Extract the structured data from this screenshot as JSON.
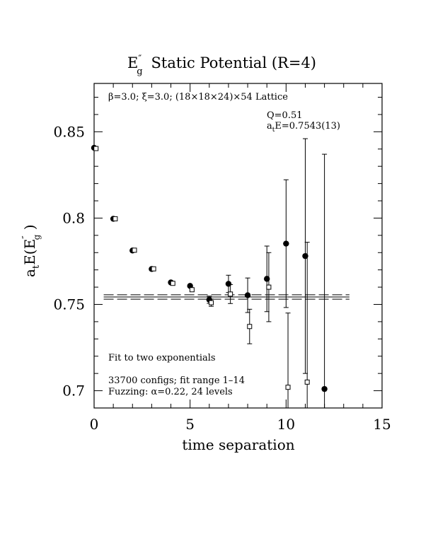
{
  "chart_data": {
    "type": "scatter",
    "title_main": "E",
    "title_sup": "″",
    "title_sub": "g",
    "title_rest": "Static Potential (R=4)",
    "ylabel_a": "a",
    "ylabel_t": "t",
    "ylabel_e": "E(E",
    "ylabel_sup": "″",
    "ylabel_sub": "g",
    "ylabel_end": " )",
    "xlabel": "time separation",
    "xlim": [
      0,
      15
    ],
    "ylim": [
      0.69,
      0.878
    ],
    "x_ticks": [
      0,
      5,
      10,
      15
    ],
    "x_tick_labels": [
      "0",
      "5",
      "10",
      "15"
    ],
    "y_ticks": [
      0.7,
      0.75,
      0.8,
      0.85
    ],
    "y_tick_labels": [
      "0.7",
      "0.75",
      "0.8",
      "0.85"
    ],
    "lattice_label": "β=3.0; ξ=3.0; (18×18×24)×54 Lattice",
    "q_label": "Q=0.51",
    "fit_a": "a",
    "fit_t": "t",
    "fit_rest": "E=0.7543(13)",
    "fit_text": "Fit to two exponentials",
    "configs_text": "33700 configs; fit range 1–14",
    "fuzzing_text": "Fuzzing: α=0.22, 24 levels",
    "fit_band": {
      "x": [
        0.5,
        13.3
      ],
      "center": 0.7543,
      "error": 0.0013
    },
    "series": [
      {
        "marker": "filled-circle",
        "x": [
          0,
          1,
          2,
          3,
          4,
          5,
          6,
          7,
          8,
          9,
          10,
          11,
          12
        ],
        "y": [
          0.8407,
          0.7996,
          0.7812,
          0.7705,
          0.7627,
          0.7607,
          0.7527,
          0.7619,
          0.7553,
          0.7648,
          0.7852,
          0.778,
          0.701
        ],
        "err": [
          0.0004,
          0.0005,
          0.0007,
          0.0008,
          0.0012,
          0.0016,
          0.0021,
          0.005,
          0.01,
          0.019,
          0.037,
          0.068,
          0.136
        ]
      },
      {
        "marker": "open-square",
        "x": [
          0.1,
          1.1,
          2.1,
          3.1,
          4.1,
          5.1,
          6.1,
          7.1,
          8.1,
          9.1,
          10.1,
          11.1
        ],
        "y": [
          0.8403,
          0.7996,
          0.7814,
          0.7706,
          0.7622,
          0.7585,
          0.751,
          0.756,
          0.7372,
          0.76,
          0.702,
          0.705
        ],
        "err": [
          0.0004,
          0.0005,
          0.0007,
          0.0008,
          0.0012,
          0.0016,
          0.0021,
          0.0055,
          0.01,
          0.02,
          0.043,
          0.081
        ]
      }
    ]
  }
}
